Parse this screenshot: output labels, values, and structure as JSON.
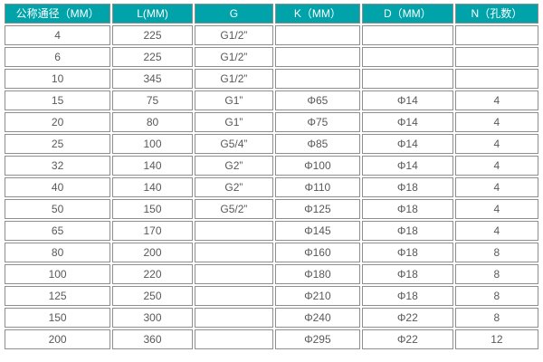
{
  "colors": {
    "header_bg": "#00a3a9",
    "header_text": "#ffffff",
    "body_text": "#58595b",
    "cell_border": "#8e8e8e",
    "page_bg": "#ffffff"
  },
  "table": {
    "headers": [
      {
        "label": "公称通径（MM）"
      },
      {
        "label": "L(MM)"
      },
      {
        "label": "G"
      },
      {
        "label": "K（MM）"
      },
      {
        "label": "D（MM）"
      },
      {
        "label": "N（孔数）"
      }
    ],
    "rows": [
      [
        "4",
        "225",
        "G1/2”",
        "",
        "",
        ""
      ],
      [
        "6",
        "225",
        "G1/2”",
        "",
        "",
        ""
      ],
      [
        "10",
        "345",
        "G1/2”",
        "",
        "",
        ""
      ],
      [
        "15",
        "75",
        "G1”",
        "Φ65",
        "Φ14",
        "4"
      ],
      [
        "20",
        "80",
        "G1”",
        "Φ75",
        "Φ14",
        "4"
      ],
      [
        "25",
        "100",
        "G5/4”",
        "Φ85",
        "Φ14",
        "4"
      ],
      [
        "32",
        "140",
        "G2”",
        "Φ100",
        "Φ14",
        "4"
      ],
      [
        "40",
        "140",
        "G2”",
        "Φ110",
        "Φ18",
        "4"
      ],
      [
        "50",
        "150",
        "G5/2”",
        "Φ125",
        "Φ18",
        "4"
      ],
      [
        "65",
        "170",
        "",
        "Φ145",
        "Φ18",
        "4"
      ],
      [
        "80",
        "200",
        "",
        "Φ160",
        "Φ18",
        "8"
      ],
      [
        "100",
        "220",
        "",
        "Φ180",
        "Φ18",
        "8"
      ],
      [
        "125",
        "250",
        "",
        "Φ210",
        "Φ18",
        "8"
      ],
      [
        "150",
        "300",
        "",
        "Φ240",
        "Φ22",
        "8"
      ],
      [
        "200",
        "360",
        "",
        "Φ295",
        "Φ22",
        "12"
      ]
    ]
  }
}
